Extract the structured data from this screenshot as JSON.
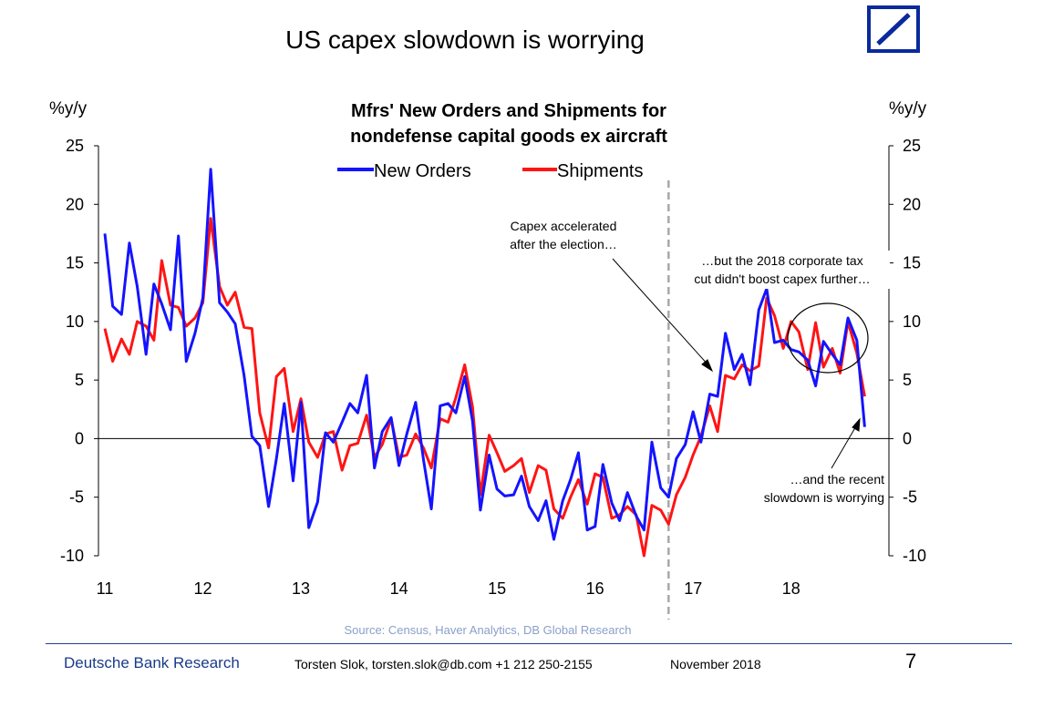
{
  "page": {
    "title": "US capex slowdown is worrying",
    "footer": {
      "brand": "Deutsche Bank Research",
      "author": "Torsten Slok, torsten.slok@db.com  +1 212 250-2155",
      "date": "November 2018",
      "page_number": "7"
    }
  },
  "chart_data": {
    "type": "line",
    "title": "Mfrs' New Orders and Shipments for nondefense capital goods ex aircraft",
    "title_lines": [
      "Mfrs' New Orders and Shipments for",
      "nondefense capital goods ex aircraft"
    ],
    "ylabel_left": "%y/y",
    "ylabel_right": "%y/y",
    "ylim": [
      -10,
      25
    ],
    "yticks": [
      "-10",
      "-5",
      "0",
      "5",
      "10",
      "15",
      "20",
      "25"
    ],
    "yticks_right": [
      "-10",
      "-5",
      "0",
      "5",
      "10",
      "15",
      "20",
      "25"
    ],
    "xlim": [
      2011,
      2018.83
    ],
    "xticks": [
      {
        "x": 2011,
        "label": "11"
      },
      {
        "x": 2012,
        "label": "12"
      },
      {
        "x": 2013,
        "label": "13"
      },
      {
        "x": 2014,
        "label": "14"
      },
      {
        "x": 2015,
        "label": "15"
      },
      {
        "x": 2016,
        "label": "16"
      },
      {
        "x": 2017,
        "label": "17"
      },
      {
        "x": 2018,
        "label": "18"
      }
    ],
    "legend_position": "top-center",
    "source": "Source: Census, Haver Analytics, DB Global Research",
    "election_marker_x": 2016.75,
    "series": [
      {
        "name": "New Orders",
        "color": "#1414ff",
        "points": [
          [
            2011,
            17.5
          ],
          [
            2011.08,
            11.3
          ],
          [
            2011.17,
            10.6
          ],
          [
            2011.25,
            16.7
          ],
          [
            2011.33,
            13
          ],
          [
            2011.42,
            7.2
          ],
          [
            2011.5,
            13.2
          ],
          [
            2011.58,
            11.5
          ],
          [
            2011.67,
            9.3
          ],
          [
            2011.75,
            17.3
          ],
          [
            2011.83,
            6.6
          ],
          [
            2011.92,
            9
          ],
          [
            2012,
            12
          ],
          [
            2012.08,
            23
          ],
          [
            2012.17,
            11.6
          ],
          [
            2012.25,
            10.8
          ],
          [
            2012.33,
            9.8
          ],
          [
            2012.42,
            5.4
          ],
          [
            2012.5,
            0.2
          ],
          [
            2012.58,
            -0.6
          ],
          [
            2012.67,
            -5.8
          ],
          [
            2012.75,
            -1.7
          ],
          [
            2012.83,
            3
          ],
          [
            2012.92,
            -3.6
          ],
          [
            2013,
            3.1
          ],
          [
            2013.08,
            -7.6
          ],
          [
            2013.17,
            -5.4
          ],
          [
            2013.25,
            0.5
          ],
          [
            2013.33,
            -0.3
          ],
          [
            2013.42,
            1.4
          ],
          [
            2013.5,
            3
          ],
          [
            2013.58,
            2.2
          ],
          [
            2013.67,
            5.4
          ],
          [
            2013.75,
            -2.5
          ],
          [
            2013.83,
            0.6
          ],
          [
            2013.92,
            1.8
          ],
          [
            2014,
            -2.3
          ],
          [
            2014.08,
            0.4
          ],
          [
            2014.17,
            3.1
          ],
          [
            2014.25,
            -1.8
          ],
          [
            2014.33,
            -6
          ],
          [
            2014.42,
            2.8
          ],
          [
            2014.5,
            3
          ],
          [
            2014.58,
            2.2
          ],
          [
            2014.67,
            5.3
          ],
          [
            2014.75,
            1.5
          ],
          [
            2014.83,
            -6.1
          ],
          [
            2014.92,
            -1.4
          ],
          [
            2015,
            -4.3
          ],
          [
            2015.08,
            -4.9
          ],
          [
            2015.17,
            -4.8
          ],
          [
            2015.25,
            -3.2
          ],
          [
            2015.33,
            -5.8
          ],
          [
            2015.42,
            -7
          ],
          [
            2015.5,
            -5.3
          ],
          [
            2015.58,
            -8.6
          ],
          [
            2015.67,
            -5.3
          ],
          [
            2015.75,
            -3.5
          ],
          [
            2015.83,
            -1.2
          ],
          [
            2015.92,
            -7.8
          ],
          [
            2016,
            -7.5
          ],
          [
            2016.08,
            -2.2
          ],
          [
            2016.17,
            -5.5
          ],
          [
            2016.25,
            -7
          ],
          [
            2016.33,
            -4.6
          ],
          [
            2016.42,
            -6.6
          ],
          [
            2016.5,
            -7.8
          ],
          [
            2016.58,
            -0.3
          ],
          [
            2016.67,
            -4.2
          ],
          [
            2016.75,
            -5
          ],
          [
            2016.83,
            -1.7
          ],
          [
            2016.92,
            -0.5
          ],
          [
            2017,
            2.3
          ],
          [
            2017.08,
            -0.3
          ],
          [
            2017.17,
            3.8
          ],
          [
            2017.25,
            3.6
          ],
          [
            2017.33,
            9
          ],
          [
            2017.42,
            5.9
          ],
          [
            2017.5,
            7.2
          ],
          [
            2017.58,
            4.6
          ],
          [
            2017.67,
            11
          ],
          [
            2017.75,
            12.8
          ],
          [
            2017.83,
            8.2
          ],
          [
            2017.92,
            8.4
          ],
          [
            2018,
            7.6
          ],
          [
            2018.08,
            7.4
          ],
          [
            2018.17,
            6.7
          ],
          [
            2018.25,
            4.5
          ],
          [
            2018.33,
            8.3
          ],
          [
            2018.42,
            7.2
          ],
          [
            2018.5,
            6.3
          ],
          [
            2018.58,
            10.3
          ],
          [
            2018.67,
            8.4
          ],
          [
            2018.75,
            1
          ]
        ]
      },
      {
        "name": "Shipments",
        "color": "#ff1414",
        "points": [
          [
            2011,
            9.4
          ],
          [
            2011.08,
            6.6
          ],
          [
            2011.17,
            8.5
          ],
          [
            2011.25,
            7.2
          ],
          [
            2011.33,
            10
          ],
          [
            2011.42,
            9.6
          ],
          [
            2011.5,
            8.4
          ],
          [
            2011.58,
            15.2
          ],
          [
            2011.67,
            11.4
          ],
          [
            2011.75,
            11.2
          ],
          [
            2011.83,
            9.6
          ],
          [
            2011.92,
            10.3
          ],
          [
            2012,
            11.6
          ],
          [
            2012.08,
            18.8
          ],
          [
            2012.17,
            13
          ],
          [
            2012.25,
            11.4
          ],
          [
            2012.33,
            12.5
          ],
          [
            2012.42,
            9.5
          ],
          [
            2012.5,
            9.4
          ],
          [
            2012.58,
            2.2
          ],
          [
            2012.67,
            -0.8
          ],
          [
            2012.75,
            5.3
          ],
          [
            2012.83,
            6
          ],
          [
            2012.92,
            0.6
          ],
          [
            2013,
            3.4
          ],
          [
            2013.08,
            -0.3
          ],
          [
            2013.17,
            -1.6
          ],
          [
            2013.25,
            0.4
          ],
          [
            2013.33,
            0.6
          ],
          [
            2013.42,
            -2.7
          ],
          [
            2013.5,
            -0.6
          ],
          [
            2013.58,
            -0.4
          ],
          [
            2013.67,
            2
          ],
          [
            2013.75,
            -1.6
          ],
          [
            2013.83,
            -0.5
          ],
          [
            2013.92,
            1.7
          ],
          [
            2014,
            -1.6
          ],
          [
            2014.08,
            -1.4
          ],
          [
            2014.17,
            0.4
          ],
          [
            2014.25,
            -0.8
          ],
          [
            2014.33,
            -2.5
          ],
          [
            2014.42,
            1.7
          ],
          [
            2014.5,
            1.4
          ],
          [
            2014.58,
            3.5
          ],
          [
            2014.67,
            6.3
          ],
          [
            2014.75,
            2.7
          ],
          [
            2014.83,
            -4.8
          ],
          [
            2014.92,
            0.3
          ],
          [
            2015,
            -1.2
          ],
          [
            2015.08,
            -2.8
          ],
          [
            2015.17,
            -2.3
          ],
          [
            2015.25,
            -1.7
          ],
          [
            2015.33,
            -4.6
          ],
          [
            2015.42,
            -2.3
          ],
          [
            2015.5,
            -2.7
          ],
          [
            2015.58,
            -6
          ],
          [
            2015.67,
            -6.8
          ],
          [
            2015.75,
            -5
          ],
          [
            2015.83,
            -3.5
          ],
          [
            2015.92,
            -5.6
          ],
          [
            2016,
            -3
          ],
          [
            2016.08,
            -3.3
          ],
          [
            2016.17,
            -6.8
          ],
          [
            2016.25,
            -6.5
          ],
          [
            2016.33,
            -5.8
          ],
          [
            2016.42,
            -6.5
          ],
          [
            2016.5,
            -10
          ],
          [
            2016.58,
            -5.7
          ],
          [
            2016.67,
            -6.1
          ],
          [
            2016.75,
            -7.3
          ],
          [
            2016.83,
            -4.8
          ],
          [
            2016.92,
            -3.3
          ],
          [
            2017,
            -1.4
          ],
          [
            2017.08,
            0.2
          ],
          [
            2017.17,
            2.8
          ],
          [
            2017.25,
            0.6
          ],
          [
            2017.33,
            5.4
          ],
          [
            2017.42,
            5.1
          ],
          [
            2017.5,
            6.3
          ],
          [
            2017.58,
            5.8
          ],
          [
            2017.67,
            6.2
          ],
          [
            2017.75,
            12
          ],
          [
            2017.83,
            10.5
          ],
          [
            2017.92,
            7.7
          ],
          [
            2018,
            10
          ],
          [
            2018.08,
            9.1
          ],
          [
            2018.17,
            5.9
          ],
          [
            2018.25,
            9.9
          ],
          [
            2018.33,
            6.1
          ],
          [
            2018.42,
            7.7
          ],
          [
            2018.5,
            5.6
          ],
          [
            2018.58,
            10
          ],
          [
            2018.67,
            7.3
          ],
          [
            2018.75,
            3.6
          ]
        ]
      }
    ],
    "annotations": [
      {
        "id": "election",
        "lines": [
          "Capex accelerated",
          "after the election…"
        ]
      },
      {
        "id": "tax-cut",
        "lines": [
          "…but the 2018 corporate tax",
          "cut didn't boost capex further…"
        ]
      },
      {
        "id": "slowdown",
        "lines": [
          "…and the recent",
          "slowdown is worrying"
        ]
      }
    ]
  }
}
